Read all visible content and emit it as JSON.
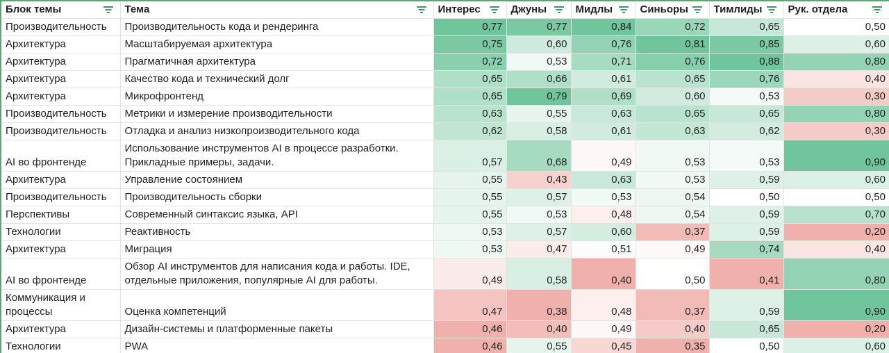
{
  "header": {
    "block": "Блок темы",
    "topic": "Тема",
    "interest": "Интерес",
    "juniors": "Джуны",
    "middles": "Мидлы",
    "seniors": "Синьоры",
    "teamleads": "Тимлиды",
    "heads": "Рук. отдела"
  },
  "icons": {
    "filter": "filter-icon"
  },
  "colors": {
    "high": "#57bb8a",
    "mid": "#ffffff",
    "low": "#e67c73",
    "border": "#e2e3e3",
    "frame": "#4caf6e"
  },
  "rows": [
    {
      "block": "Производительность",
      "topic": "Производительность кода и рендеринга",
      "interest": "0,77",
      "juniors": "0,77",
      "middles": "0,84",
      "seniors": "0,72",
      "teamleads": "0,65",
      "heads": "0,50"
    },
    {
      "block": "Архитектура",
      "topic": "Масштабируемая архитектура",
      "interest": "0,75",
      "juniors": "0,60",
      "middles": "0,76",
      "seniors": "0,81",
      "teamleads": "0,85",
      "heads": "0,60"
    },
    {
      "block": "Архитектура",
      "topic": "Прагматичная архитектура",
      "interest": "0,72",
      "juniors": "0,53",
      "middles": "0,71",
      "seniors": "0,76",
      "teamleads": "0,88",
      "heads": "0,80"
    },
    {
      "block": "Архитектура",
      "topic": "Качество кода и технический долг",
      "interest": "0,65",
      "juniors": "0,66",
      "middles": "0,61",
      "seniors": "0,65",
      "teamleads": "0,76",
      "heads": "0,40"
    },
    {
      "block": "Архитектура",
      "topic": "Микрофронтенд",
      "interest": "0,65",
      "juniors": "0,79",
      "middles": "0,69",
      "seniors": "0,60",
      "teamleads": "0,53",
      "heads": "0,30"
    },
    {
      "block": "Производительность",
      "topic": "Метрики и измерение производительности",
      "interest": "0,63",
      "juniors": "0,55",
      "middles": "0,63",
      "seniors": "0,65",
      "teamleads": "0,65",
      "heads": "0,80"
    },
    {
      "block": "Производительность",
      "topic": "Отладка и анализ низкопроизводительного кода",
      "interest": "0,62",
      "juniors": "0,58",
      "middles": "0,61",
      "seniors": "0,63",
      "teamleads": "0,62",
      "heads": "0,30"
    },
    {
      "block": "AI во фронтенде",
      "topic": "Использование инструментов AI в процессе разработки. Прикладные примеры, задачи.",
      "interest": "0,57",
      "juniors": "0,68",
      "middles": "0,49",
      "seniors": "0,53",
      "teamleads": "0,53",
      "heads": "0,90",
      "tall": true
    },
    {
      "block": "Архитектура",
      "topic": "Управление состоянием",
      "interest": "0,55",
      "juniors": "0,43",
      "middles": "0,63",
      "seniors": "0,53",
      "teamleads": "0,59",
      "heads": "0,60"
    },
    {
      "block": "Производительность",
      "topic": "Производительность сборки",
      "interest": "0,55",
      "juniors": "0,57",
      "middles": "0,53",
      "seniors": "0,54",
      "teamleads": "0,50",
      "heads": "0,50"
    },
    {
      "block": "Перспективы",
      "topic": "Современный синтаксис языка, API",
      "interest": "0,55",
      "juniors": "0,53",
      "middles": "0,48",
      "seniors": "0,54",
      "teamleads": "0,59",
      "heads": "0,70"
    },
    {
      "block": "Технологии",
      "topic": "Реактивность",
      "interest": "0,53",
      "juniors": "0,57",
      "middles": "0,60",
      "seniors": "0,37",
      "teamleads": "0,59",
      "heads": "0,20"
    },
    {
      "block": "Архитектура",
      "topic": "Миграция",
      "interest": "0,53",
      "juniors": "0,47",
      "middles": "0,51",
      "seniors": "0,49",
      "teamleads": "0,74",
      "heads": "0,40"
    },
    {
      "block": "AI во фронтенде",
      "topic": "Обзор AI инструментов для написания кода и работы. IDE, отдельные приложения, популярные AI для работы.",
      "interest": "0,49",
      "juniors": "0,58",
      "middles": "0,40",
      "seniors": "0,50",
      "teamleads": "0,41",
      "heads": "0,80",
      "tall": true
    },
    {
      "block": "Коммуникация и процессы",
      "topic": "Оценка компетенций",
      "interest": "0,47",
      "juniors": "0,38",
      "middles": "0,48",
      "seniors": "0,37",
      "teamleads": "0,59",
      "heads": "0,90",
      "tall": true
    },
    {
      "block": "Архитектура",
      "topic": "Дизайн-системы и платформенные пакеты",
      "interest": "0,46",
      "juniors": "0,40",
      "middles": "0,49",
      "seniors": "0,40",
      "teamleads": "0,65",
      "heads": "0,20"
    },
    {
      "block": "Технологии",
      "topic": "PWA",
      "interest": "0,46",
      "juniors": "0,55",
      "middles": "0,45",
      "seniors": "0,35",
      "teamleads": "0,50",
      "heads": "0,60"
    }
  ]
}
